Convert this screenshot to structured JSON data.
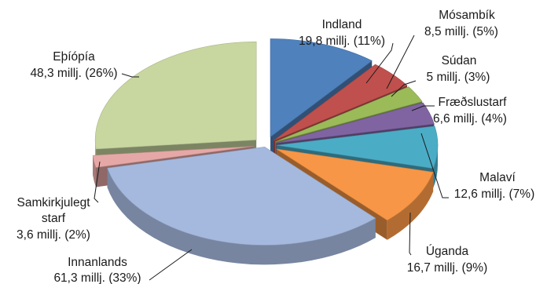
{
  "chart_data": {
    "type": "pie",
    "title": "",
    "slices": [
      {
        "name": "Indland",
        "value_text": "19,8 millj. (11%)",
        "value": 19.8,
        "percent": 11,
        "color": "#4f81bd"
      },
      {
        "name": "Mósambík",
        "value_text": "8,5 millj. (5%)",
        "value": 8.5,
        "percent": 5,
        "color": "#c0504d"
      },
      {
        "name": "Súdan",
        "value_text": "5 millj. (3%)",
        "value": 5,
        "percent": 3,
        "color": "#9bbb59"
      },
      {
        "name": "Fræðslustarf",
        "value_text": "6,6 millj. (4%)",
        "value": 6.6,
        "percent": 4,
        "color": "#8064a2"
      },
      {
        "name": "Malaví",
        "value_text": "12,6 millj. (7%)",
        "value": 12.6,
        "percent": 7,
        "color": "#4bacc6"
      },
      {
        "name": "Úganda",
        "value_text": "16,7 millj. (9%)",
        "value": 16.7,
        "percent": 9,
        "color": "#f79646"
      },
      {
        "name": "Innanlands",
        "value_text": "61,3 millj. (33%)",
        "value": 61.3,
        "percent": 33,
        "color": "#a5b9de"
      },
      {
        "name": "Samkirkjulegt starf",
        "name_lines": [
          "Samkirkjulegt",
          "starf"
        ],
        "value_text": "3,6 millj. (2%)",
        "value": 3.6,
        "percent": 2,
        "color": "#e6a8a6"
      },
      {
        "name": "Eþíópía",
        "value_text": "48,3 millj. (26%)",
        "value": 48.3,
        "percent": 26,
        "color": "#c8d6a0"
      }
    ]
  }
}
